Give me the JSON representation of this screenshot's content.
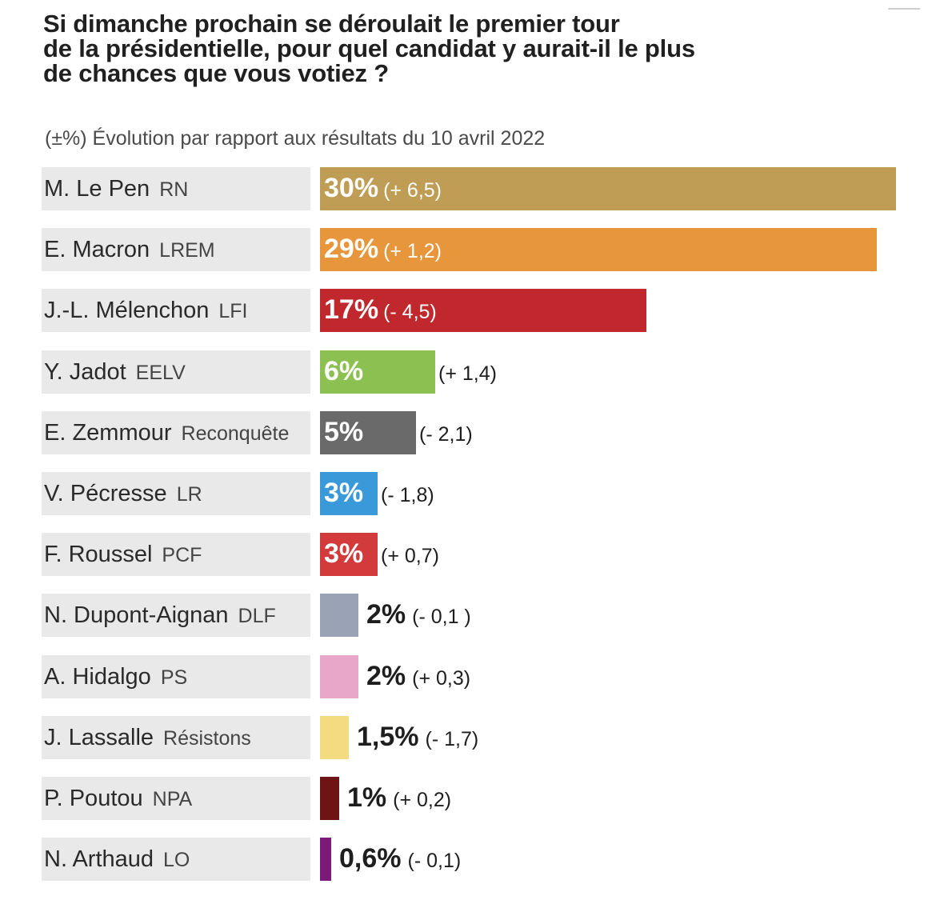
{
  "title_lines": [
    "Si dimanche prochain se déroulait le premier tour",
    "de la présidentielle, pour quel candidat y aurait-il le plus",
    "de chances que vous votiez ?"
  ],
  "subtitle": "(±%) Évolution par rapport aux résultats du 10 avril 2022",
  "chart_data": {
    "type": "bar",
    "orientation": "horizontal",
    "title": "Si dimanche prochain se déroulait le premier tour de la présidentielle, pour quel candidat y aurait-il le plus de chances que vous votiez ?",
    "subtitle": "(±%) Évolution par rapport aux résultats du 10 avril 2022",
    "xlim": [
      0,
      30
    ],
    "grid": false,
    "candidates": [
      {
        "name": "M. Le Pen",
        "party": "RN",
        "value": 30,
        "value_label": "30%",
        "change": "(+ 6,5)",
        "color": "#c09d55",
        "label_inside": true
      },
      {
        "name": "E. Macron",
        "party": "LREM",
        "value": 29,
        "value_label": "29%",
        "change": "(+ 1,2)",
        "color": "#e8963c",
        "label_inside": true
      },
      {
        "name": "J.-L. Mélenchon",
        "party": "LFI",
        "value": 17,
        "value_label": "17%",
        "change": "(- 4,5)",
        "color": "#c1282d",
        "label_inside": true
      },
      {
        "name": "Y. Jadot",
        "party": "EELV",
        "value": 6,
        "value_label": "6%",
        "change": "(+ 1,4)",
        "color": "#8cc152",
        "label_inside": true
      },
      {
        "name": "E. Zemmour",
        "party": "Reconquête",
        "value": 5,
        "value_label": "5%",
        "change": "(- 2,1)",
        "color": "#6a6a6a",
        "label_inside": true
      },
      {
        "name": "V. Pécresse",
        "party": "LR",
        "value": 3,
        "value_label": "3%",
        "change": "(- 1,8)",
        "color": "#3a9ad9",
        "label_inside": true
      },
      {
        "name": "F. Roussel",
        "party": "PCF",
        "value": 3,
        "value_label": "3%",
        "change": "(+ 0,7)",
        "color": "#d33a3c",
        "label_inside": true
      },
      {
        "name": "N. Dupont-Aignan",
        "party": "DLF",
        "value": 2,
        "value_label": "2%",
        "change": "(- 0,1 )",
        "color": "#9aa3b5",
        "label_inside": false
      },
      {
        "name": "A. Hidalgo",
        "party": "PS",
        "value": 2,
        "value_label": "2%",
        "change": "(+ 0,3)",
        "color": "#e8a6c8",
        "label_inside": false
      },
      {
        "name": "J. Lassalle",
        "party": "Résistons",
        "value": 1.5,
        "value_label": "1,5%",
        "change": "(- 1,7)",
        "color": "#f5db80",
        "label_inside": false
      },
      {
        "name": "P. Poutou",
        "party": "NPA",
        "value": 1,
        "value_label": "1%",
        "change": "(+ 0,2)",
        "color": "#6e1414",
        "label_inside": false
      },
      {
        "name": "N. Arthaud",
        "party": "LO",
        "value": 0.6,
        "value_label": "0,6%",
        "change": "(- 0,1)",
        "color": "#7b1a7a",
        "label_inside": false
      }
    ]
  }
}
